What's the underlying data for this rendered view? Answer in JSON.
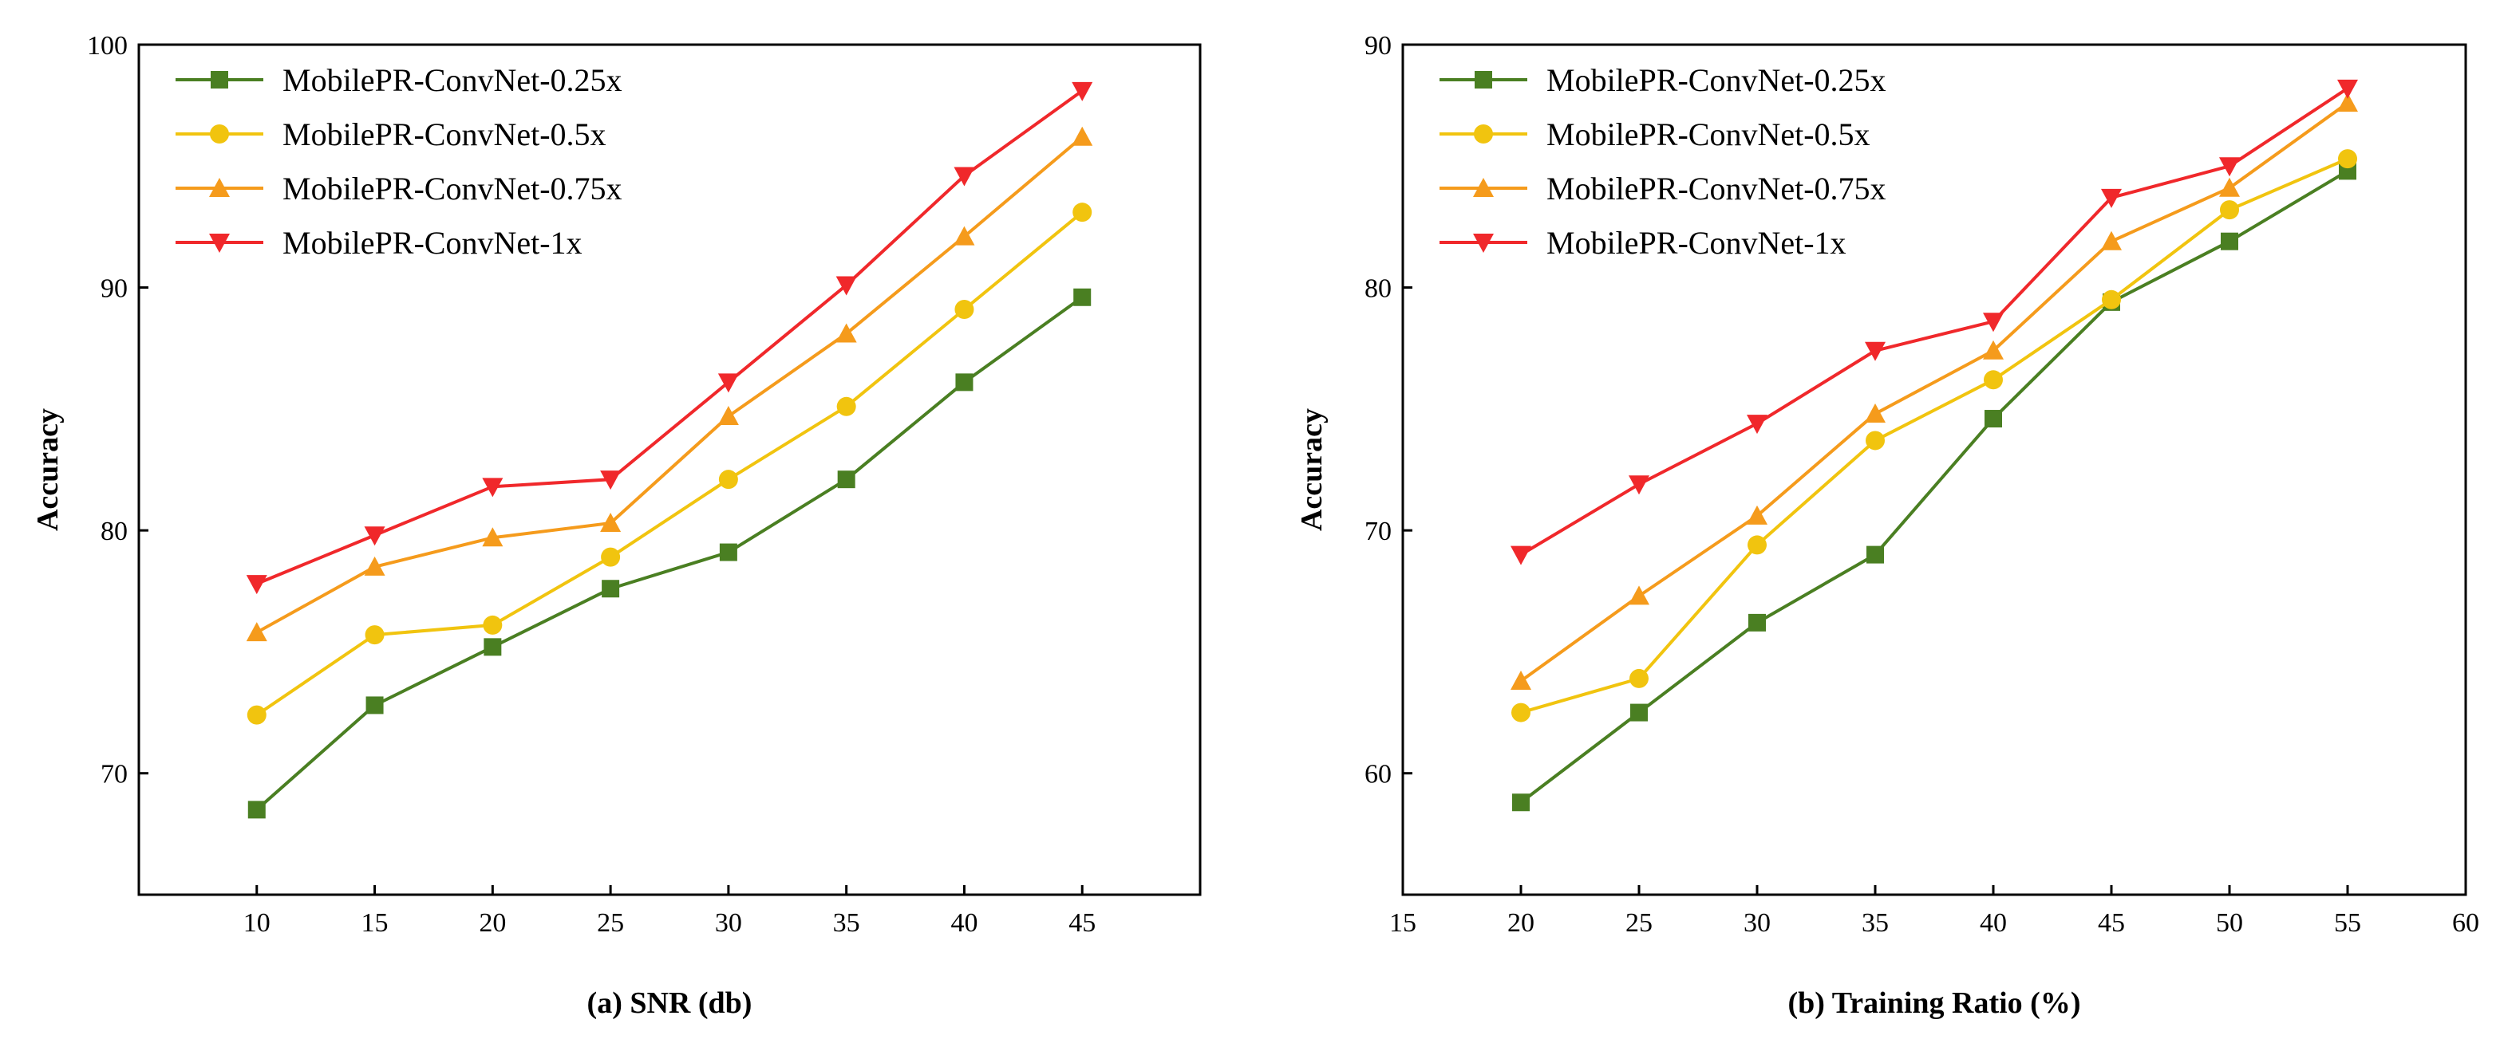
{
  "chart_data": [
    {
      "type": "line",
      "title": "",
      "xlabel": "(a) SNR (db)",
      "ylabel": "Accuracy",
      "xlim": [
        5,
        50
      ],
      "ylim": [
        65,
        100
      ],
      "x_ticks": [
        10,
        15,
        20,
        25,
        30,
        35,
        40,
        45
      ],
      "y_ticks": [
        70,
        80,
        90,
        100
      ],
      "x": [
        10,
        15,
        20,
        25,
        30,
        35,
        40,
        45
      ],
      "legend_position": "top-left",
      "series": [
        {
          "name": "MobilePR-ConvNet-0.25x",
          "color": "#4a7f22",
          "marker": "square",
          "values": [
            68.5,
            72.8,
            75.2,
            77.6,
            79.1,
            82.1,
            86.1,
            89.6
          ]
        },
        {
          "name": "MobilePR-ConvNet-0.5x",
          "color": "#f1c40f",
          "marker": "circle",
          "values": [
            72.4,
            75.7,
            76.1,
            78.9,
            82.1,
            85.1,
            89.1,
            93.1
          ]
        },
        {
          "name": "MobilePR-ConvNet-0.75x",
          "color": "#f59b1c",
          "marker": "triangle-up",
          "values": [
            75.8,
            78.5,
            79.7,
            80.3,
            84.7,
            88.1,
            92.1,
            96.2
          ]
        },
        {
          "name": "MobilePR-ConvNet-1x",
          "color": "#f0282b",
          "marker": "triangle-down",
          "values": [
            77.8,
            79.8,
            81.8,
            82.1,
            86.1,
            90.1,
            94.6,
            98.1
          ]
        }
      ]
    },
    {
      "type": "line",
      "title": "",
      "xlabel": "(b) Training Ratio (%)",
      "ylabel": "Accuracy",
      "xlim": [
        15,
        60
      ],
      "ylim": [
        55,
        90
      ],
      "x_ticks": [
        15,
        20,
        25,
        30,
        35,
        40,
        45,
        50,
        55,
        60
      ],
      "y_ticks": [
        60,
        70,
        80,
        90
      ],
      "x": [
        20,
        25,
        30,
        35,
        40,
        45,
        50,
        55
      ],
      "legend_position": "top-left",
      "series": [
        {
          "name": "MobilePR-ConvNet-0.25x",
          "color": "#4a7f22",
          "marker": "square",
          "values": [
            58.8,
            62.5,
            66.2,
            69.0,
            74.6,
            79.4,
            81.9,
            84.8
          ]
        },
        {
          "name": "MobilePR-ConvNet-0.5x",
          "color": "#f1c40f",
          "marker": "circle",
          "values": [
            62.5,
            63.9,
            69.4,
            73.7,
            76.2,
            79.5,
            83.2,
            85.3
          ]
        },
        {
          "name": "MobilePR-ConvNet-0.75x",
          "color": "#f59b1c",
          "marker": "triangle-up",
          "values": [
            63.8,
            67.3,
            70.6,
            74.8,
            77.4,
            81.9,
            84.1,
            87.6
          ]
        },
        {
          "name": "MobilePR-ConvNet-1x",
          "color": "#f0282b",
          "marker": "triangle-down",
          "values": [
            69.0,
            71.9,
            74.4,
            77.4,
            78.6,
            83.7,
            85.0,
            88.2
          ]
        }
      ]
    }
  ]
}
